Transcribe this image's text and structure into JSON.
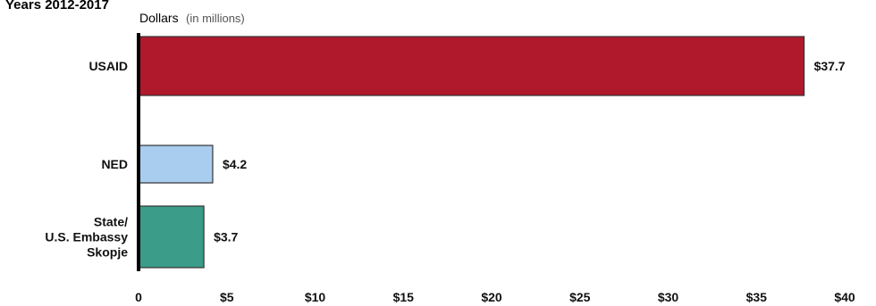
{
  "chart_data": {
    "type": "bar",
    "orientation": "horizontal",
    "title": "Years 2012-2017",
    "unit_label": "Dollars",
    "unit_note": "(in millions)",
    "categories": [
      [
        "USAID"
      ],
      [
        "NED"
      ],
      [
        "State/",
        "U.S. Embassy",
        "Skopje"
      ]
    ],
    "values": [
      37.7,
      4.2,
      3.7
    ],
    "data_labels": [
      "$37.7",
      "$4.2",
      "$3.7"
    ],
    "bar_colors": [
      "#b0182c",
      "#a8cdee",
      "#3c9c8a"
    ],
    "xlim": [
      0,
      40
    ],
    "xticks": [
      0,
      5,
      10,
      15,
      20,
      25,
      30,
      35,
      40
    ],
    "xtick_labels": [
      "0",
      "$5",
      "$10",
      "$15",
      "$20",
      "$25",
      "$30",
      "$35",
      "$40"
    ],
    "grid": false,
    "legend": "none"
  }
}
